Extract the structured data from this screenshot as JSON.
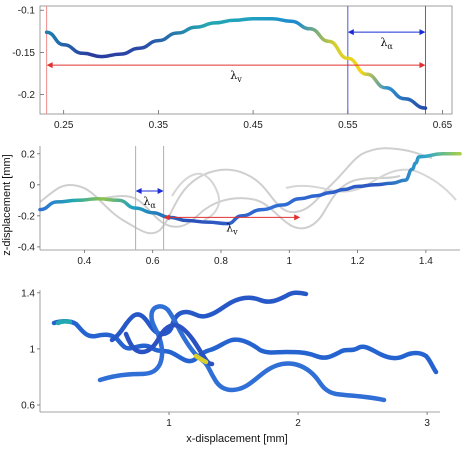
{
  "chart_data": [
    {
      "type": "line",
      "panel": "top",
      "x_ticks": [
        0.25,
        0.35,
        0.45,
        0.55,
        0.65
      ],
      "x_tick_labels": [
        "0.25",
        "0.35",
        "0.45",
        "0.55",
        "0.65"
      ],
      "y_ticks": [
        -0.1,
        -0.15,
        -0.2
      ],
      "y_tick_labels": [
        "-0.1",
        "-0.15",
        "-0.2"
      ],
      "xlim": [
        0.225,
        0.66
      ],
      "ylim": [
        -0.223,
        -0.095
      ],
      "series": [
        {
          "x": [
            0.232,
            0.25,
            0.27,
            0.29,
            0.31,
            0.33,
            0.35,
            0.37,
            0.39,
            0.41,
            0.43,
            0.45,
            0.47,
            0.49,
            0.51,
            0.53,
            0.55,
            0.57,
            0.59,
            0.61,
            0.632
          ],
          "y": [
            -0.126,
            -0.141,
            -0.151,
            -0.155,
            -0.152,
            -0.145,
            -0.136,
            -0.127,
            -0.12,
            -0.115,
            -0.112,
            -0.11,
            -0.11,
            -0.113,
            -0.122,
            -0.137,
            -0.157,
            -0.176,
            -0.192,
            -0.205,
            -0.216
          ]
        }
      ],
      "vertical_lines": [
        {
          "x": 0.232,
          "color": "#f08a8a"
        },
        {
          "x": 0.55,
          "color": "#4b5bd6"
        },
        {
          "x": 0.632,
          "color": "#c0397b"
        }
      ],
      "annotations": [
        {
          "label": "λ",
          "sub": "v",
          "x_from": 0.232,
          "x_to": 0.632,
          "y": -0.165,
          "color": "#e03030"
        },
        {
          "label": "λ",
          "sub": "α",
          "x_from": 0.55,
          "x_to": 0.632,
          "y": -0.126,
          "color": "#1a2dd6"
        }
      ],
      "grid": false
    },
    {
      "type": "line",
      "panel": "middle",
      "ylabel": "z-displacement [mm]",
      "x_ticks": [
        0.4,
        0.6,
        0.8,
        1.0,
        1.2,
        1.4
      ],
      "x_tick_labels": [
        "0.4",
        "0.6",
        "0.8",
        "1",
        "1.2",
        "1.4"
      ],
      "y_ticks": [
        0.2,
        0,
        -0.2,
        -0.4
      ],
      "y_tick_labels": [
        "0.2",
        "0",
        "-0.2",
        "-0.4"
      ],
      "xlim": [
        0.27,
        1.5
      ],
      "ylim": [
        -0.42,
        0.25
      ],
      "series": [
        {
          "x": [
            0.27,
            0.32,
            0.38,
            0.44,
            0.5,
            0.55,
            0.6,
            0.65,
            0.7,
            0.76,
            0.82,
            0.86,
            0.92,
            0.98,
            1.03,
            1.08,
            1.12,
            1.16,
            1.2,
            1.25,
            1.3,
            1.34,
            1.36,
            1.37,
            1.38,
            1.45,
            1.5
          ],
          "y": [
            -0.16,
            -0.11,
            -0.1,
            -0.09,
            -0.1,
            -0.15,
            -0.18,
            -0.21,
            -0.23,
            -0.24,
            -0.25,
            -0.2,
            -0.16,
            -0.13,
            -0.09,
            -0.07,
            -0.05,
            -0.03,
            -0.01,
            0.0,
            0.01,
            0.03,
            0.1,
            0.14,
            0.18,
            0.2,
            0.2
          ]
        }
      ],
      "vertical_lines": [
        {
          "x": 0.55
        },
        {
          "x": 0.632
        }
      ],
      "annotations": [
        {
          "label": "λ",
          "sub": "v",
          "x_from": 0.632,
          "x_to": 1.032,
          "y": -0.21,
          "color": "#e03030"
        },
        {
          "label": "λ",
          "sub": "α",
          "x_from": 0.55,
          "x_to": 0.632,
          "y": -0.04,
          "color": "#1a2dd6"
        }
      ],
      "grid": false
    },
    {
      "type": "line",
      "panel": "bottom",
      "xlabel": "x-displacement [mm]",
      "x_ticks": [
        1,
        2,
        3
      ],
      "x_tick_labels": [
        "1",
        "2",
        "3"
      ],
      "y_ticks": [
        1.4,
        1,
        0.6
      ],
      "y_tick_labels": [
        "1.4",
        "1",
        "0.6"
      ],
      "xlim": [
        0.0,
        3.1
      ],
      "ylim": [
        0.55,
        1.42
      ],
      "grid": false
    }
  ],
  "colors": {
    "dark": "#2a3a9e",
    "blue": "#2f6fd6",
    "teal": "#20a8b8",
    "green": "#7cc05a",
    "yellow": "#f2d21f",
    "gray": "#c8c8c8"
  }
}
